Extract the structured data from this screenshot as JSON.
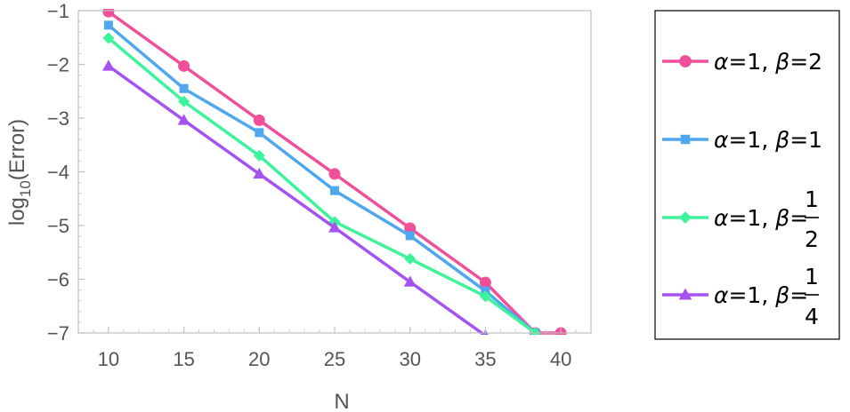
{
  "chart_data": {
    "type": "line",
    "title": "",
    "xlabel": "N",
    "ylabel_main": "log",
    "ylabel_sub": "10",
    "ylabel_rest": "(Error)",
    "xlim": [
      8,
      42
    ],
    "ylim": [
      -7,
      -1
    ],
    "xticks": [
      "10",
      "15",
      "20",
      "25",
      "30",
      "35",
      "40"
    ],
    "yticks": [
      "−1",
      "−2",
      "−3",
      "−4",
      "−5",
      "−6",
      "−7"
    ],
    "grid": false,
    "legend_position": "right",
    "series": [
      {
        "legend": {
          "alpha_sym": "α",
          "alpha_val": "=1, ",
          "beta_sym": "β",
          "beta_val": "=2",
          "frac_num": "",
          "frac_den": ""
        },
        "color": "#f0509a",
        "marker": "circle",
        "x": [
          10,
          15,
          20,
          25,
          30,
          35,
          38.3,
          40
        ],
        "y": [
          -1.02,
          -2.03,
          -3.04,
          -4.04,
          -5.05,
          -6.06,
          -7.0,
          -7.0
        ]
      },
      {
        "legend": {
          "alpha_sym": "α",
          "alpha_val": "=1, ",
          "beta_sym": "β",
          "beta_val": "=1",
          "frac_num": "",
          "frac_den": ""
        },
        "color": "#4fa8ef",
        "marker": "square",
        "x": [
          10,
          15,
          20,
          25,
          30,
          35,
          38.3
        ],
        "y": [
          -1.27,
          -2.45,
          -3.27,
          -4.35,
          -5.19,
          -6.22,
          -7.0
        ]
      },
      {
        "legend": {
          "alpha_sym": "α",
          "alpha_val": "=1, ",
          "beta_sym": "β",
          "beta_val": "=",
          "frac_num": "1",
          "frac_den": "2"
        },
        "color": "#3df39b",
        "marker": "diamond",
        "x": [
          10,
          15,
          20,
          25,
          30,
          35,
          38.3
        ],
        "y": [
          -1.51,
          -2.69,
          -3.7,
          -4.93,
          -5.62,
          -6.32,
          -7.0
        ]
      },
      {
        "legend": {
          "alpha_sym": "α",
          "alpha_val": "=1, ",
          "beta_sym": "β",
          "beta_val": "=",
          "frac_num": "1",
          "frac_den": "4"
        },
        "color": "#a552f0",
        "marker": "triangle",
        "x": [
          10,
          15,
          20,
          25,
          30,
          35
        ],
        "y": [
          -2.03,
          -3.04,
          -4.04,
          -5.04,
          -6.05,
          -7.05
        ]
      }
    ]
  }
}
